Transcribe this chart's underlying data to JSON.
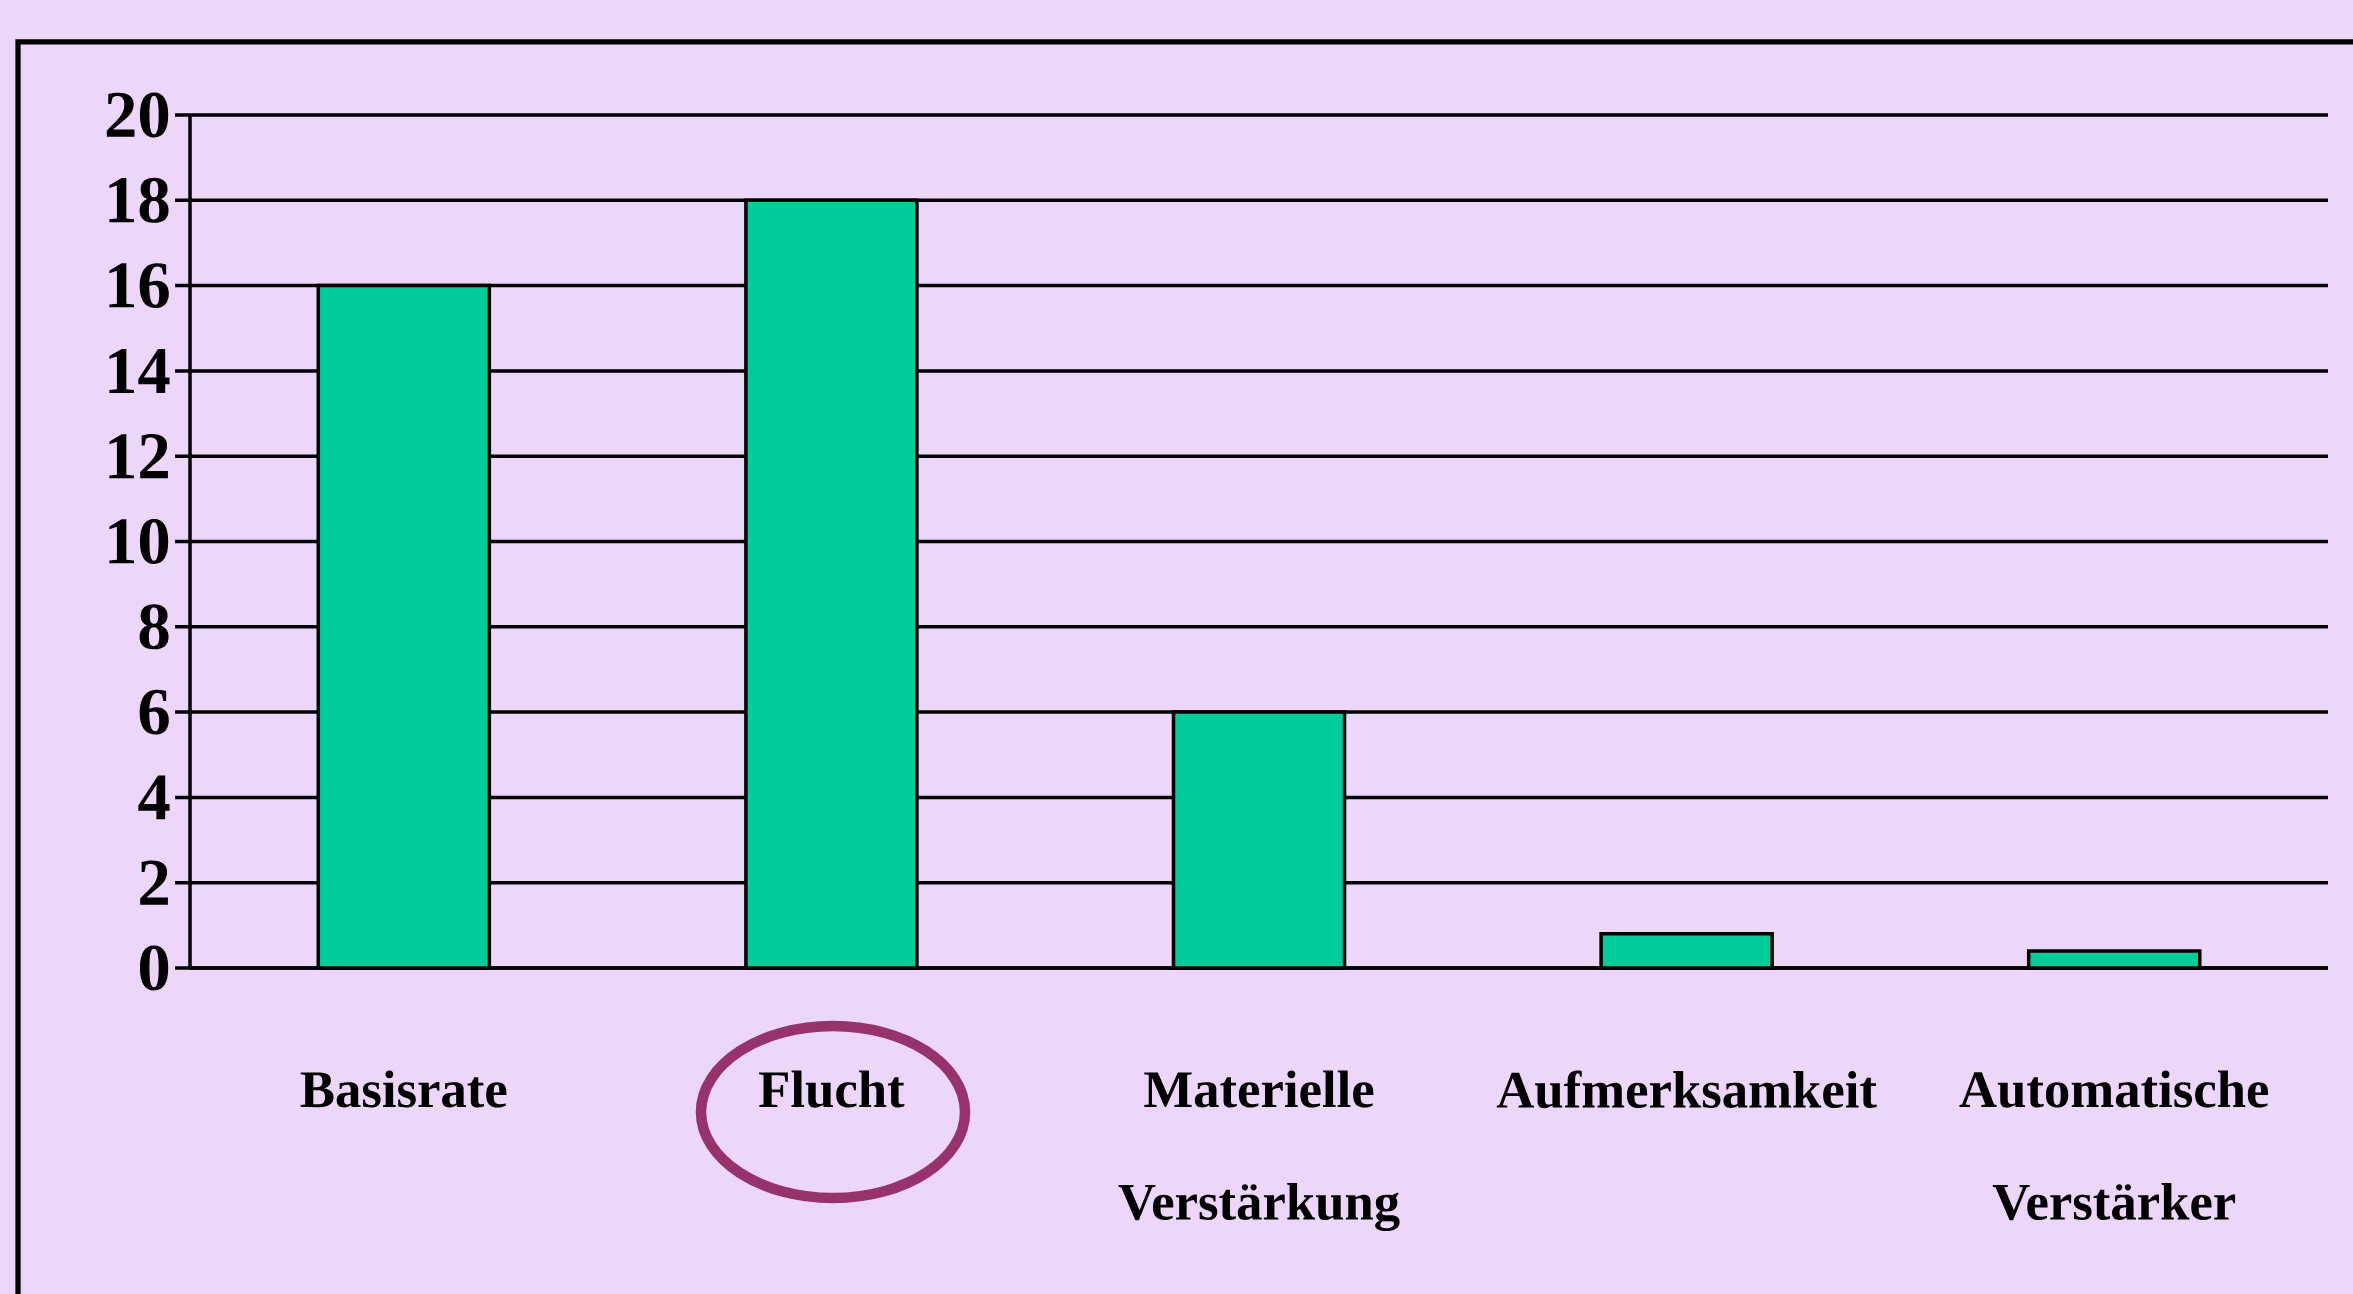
{
  "chart_data": {
    "type": "bar",
    "categories": [
      "Basisrate",
      "Flucht",
      "Materielle Verstärkung",
      "Aufmerksamkeit",
      "Automatische Verstärker"
    ],
    "values": [
      16,
      18,
      6,
      0.8,
      0.4
    ],
    "color": "#00cc99",
    "ylim": [
      0,
      20
    ],
    "yticks": [
      0,
      2,
      4,
      6,
      8,
      10,
      12,
      14,
      16,
      18,
      20
    ],
    "grid": "y"
  }
}
